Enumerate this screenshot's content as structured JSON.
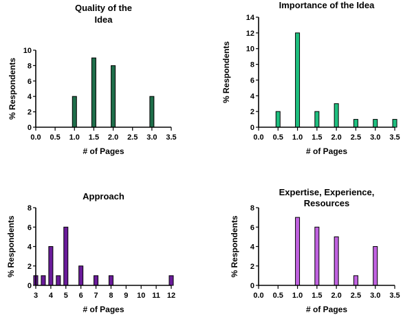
{
  "chart_data": [
    {
      "type": "bar",
      "title": [
        "Quality of the",
        "Idea"
      ],
      "xlabel": "# of Pages",
      "ylabel": "% Respondents",
      "xticks": [
        "0.0",
        "0.5",
        "1.0",
        "1.5",
        "2.0",
        "2.5",
        "3.0",
        "3.5"
      ],
      "xlim": [
        0,
        3.5
      ],
      "ylim": [
        0,
        10
      ],
      "yticks": [
        0,
        2,
        4,
        6,
        8,
        10
      ],
      "x": [
        1.0,
        1.5,
        2.0,
        3.0
      ],
      "values": [
        4,
        9,
        8,
        4
      ],
      "color": "#1f6e4a"
    },
    {
      "type": "bar",
      "title": [
        "Importance of  the Idea"
      ],
      "xlabel": "# of Pages",
      "ylabel": "% Respondents",
      "xticks": [
        "0.0",
        "0.5",
        "1.0",
        "1.5",
        "2.0",
        "2.5",
        "3.0",
        "3.5"
      ],
      "xlim": [
        0,
        3.5
      ],
      "ylim": [
        0,
        14
      ],
      "yticks": [
        0,
        2,
        4,
        6,
        8,
        10,
        12,
        14
      ],
      "x": [
        0.5,
        1.0,
        1.5,
        2.0,
        2.5,
        3.0,
        3.5
      ],
      "values": [
        2,
        12,
        2,
        3,
        1,
        1,
        1
      ],
      "color": "#1fbf7f"
    },
    {
      "type": "bar",
      "title": [
        "Approach"
      ],
      "xlabel": "# of Pages",
      "ylabel": "% Respondents",
      "xticks": [
        "3",
        "4",
        "5",
        "6",
        "7",
        "8",
        "9",
        "10",
        "11",
        "12"
      ],
      "xlim": [
        3,
        12
      ],
      "ylim": [
        0,
        8
      ],
      "yticks": [
        0,
        2,
        4,
        6,
        8
      ],
      "x": [
        3,
        3.5,
        4,
        4.5,
        5,
        6,
        7,
        8,
        12
      ],
      "values": [
        1,
        1,
        4,
        1,
        6,
        2,
        1,
        1,
        1
      ],
      "color": "#6a1b9a"
    },
    {
      "type": "bar",
      "title": [
        "Expertise, Experience,",
        "Resources"
      ],
      "xlabel": "# of Pages",
      "ylabel": "% Respondents",
      "xticks": [
        "0.0",
        "0.5",
        "1.0",
        "1.5",
        "2.0",
        "2.5",
        "3.0",
        "3.5"
      ],
      "xlim": [
        0,
        3.5
      ],
      "ylim": [
        0,
        8
      ],
      "yticks": [
        0,
        2,
        4,
        6,
        8
      ],
      "x": [
        1.0,
        1.5,
        2.0,
        2.5,
        3.0
      ],
      "values": [
        7,
        6,
        5,
        1,
        4
      ],
      "color": "#c062e0"
    }
  ]
}
